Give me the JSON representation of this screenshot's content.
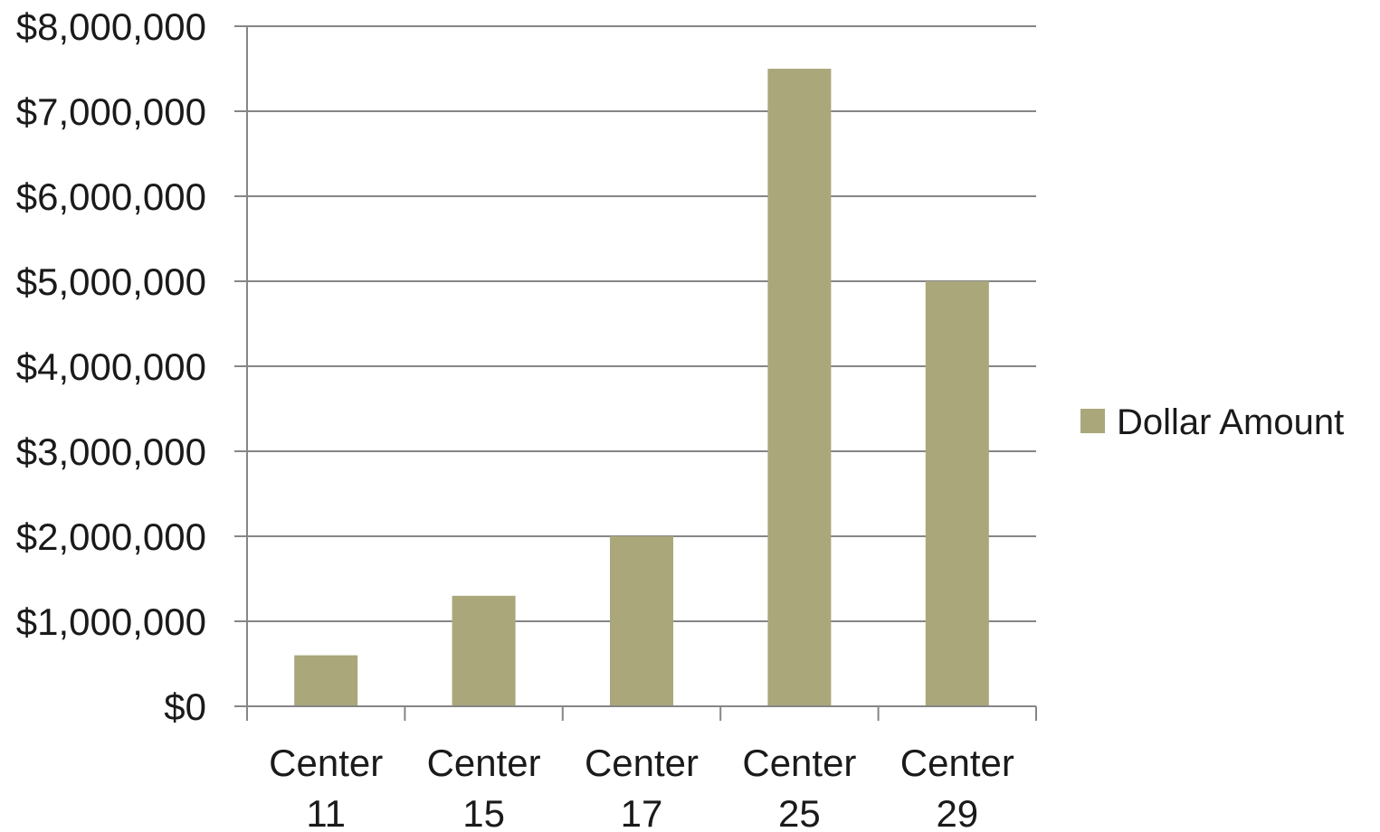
{
  "chart_data": {
    "type": "bar",
    "categories": [
      "Center 11",
      "Center 15",
      "Center 17",
      "Center 25",
      "Center 29"
    ],
    "category_lines": [
      [
        "Center",
        "11"
      ],
      [
        "Center",
        "15"
      ],
      [
        "Center",
        "17"
      ],
      [
        "Center",
        "25"
      ],
      [
        "Center",
        "29"
      ]
    ],
    "series": [
      {
        "name": "Dollar Amount",
        "values": [
          600000,
          1300000,
          2000000,
          7500000,
          5000000
        ],
        "color": "#aaa77b"
      }
    ],
    "ylim": [
      0,
      8000000
    ],
    "y_ticks": [
      0,
      1000000,
      2000000,
      3000000,
      4000000,
      5000000,
      6000000,
      7000000,
      8000000
    ],
    "y_tick_labels": [
      "$0",
      "$1,000,000",
      "$2,000,000",
      "$3,000,000",
      "$4,000,000",
      "$5,000,000",
      "$6,000,000",
      "$7,000,000",
      "$8,000,000"
    ],
    "title": "",
    "xlabel": "",
    "ylabel": "",
    "grid": true,
    "legend_position": "right",
    "gridline_color": "#868686",
    "text_color": "#1a1a1a"
  }
}
